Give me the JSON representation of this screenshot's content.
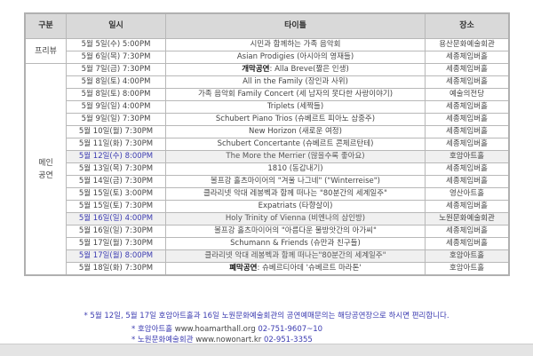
{
  "headers": {
    "category": "구분",
    "datetime": "일시",
    "title": "타이틀",
    "venue": "장소"
  },
  "categories": {
    "preview": "프리뷰",
    "main": "메인\n공연"
  },
  "rows": [
    {
      "date": "5월 5일(수) 5:00PM",
      "title": "시민과 함께하는 가족 음악회",
      "venue": "용산문화예술회관"
    },
    {
      "date": "5월 6일(목) 7:30PM",
      "title": "Asian Prodigies (아시아의 영재들)",
      "venue": "세종체임버홀"
    },
    {
      "date": "5월 7일(금) 7:30PM",
      "title_prefix": "개막공연",
      "title": ": Alla Breve(짧은 인생)",
      "venue": "세종체임버홀"
    },
    {
      "date": "5월 8일(토) 4:00PM",
      "title": "All in the Family (장인과 사위)",
      "venue": "세종체임버홀"
    },
    {
      "date": "5월 8일(토) 8:00PM",
      "title": "가족 음악회 Family Concert (세 남자의 못다한 사랑이야기)",
      "venue": "예술의전당"
    },
    {
      "date": "5월 9일(일) 4:00PM",
      "title": "Triplets (세짝들)",
      "venue": "세종체임버홀"
    },
    {
      "date": "5월 9일(일) 7:30PM",
      "title": "Schubert Piano Trios (슈베르트 피아노 삼중주)",
      "venue": "세종체임버홀"
    },
    {
      "date": "5월 10일(월) 7:30PM",
      "title": "New Horizon (새로운 여정)",
      "venue": "세종체임버홀"
    },
    {
      "date": "5월 11일(화) 7:30PM",
      "title": "Schubert Concertante (슈베르트 콘체르탄테)",
      "venue": "세종체임버홀"
    },
    {
      "date": "5월 12일(수) 8:00PM",
      "title": "The More the Merrier (많을수록 좋아요)",
      "venue": "호암아트홀",
      "highlight": true
    },
    {
      "date": "5월 13일(목) 7:30PM",
      "title": "1810 (동갑내기)",
      "venue": "세종체임버홀"
    },
    {
      "date": "5월 14일(금) 7:30PM",
      "title": "볼프강 홀츠마이어의 \"겨울 나그네\" (\"Winterreise\")",
      "venue": "세종체임버홀"
    },
    {
      "date": "5월 15일(토) 3:00PM",
      "title": "클라리넷 악대 레봉벡과 함께 떠나는 \"80분간의 세계일주\"",
      "venue": "영산아트홀"
    },
    {
      "date": "5월 15일(토) 7:30PM",
      "title": "Expatriats (타향살이)",
      "venue": "세종체임버홀"
    },
    {
      "date": "5월 16일(일) 4:00PM",
      "title": "Holy Trinity of Vienna (비엔나의 삼인방)",
      "venue": "노원문화예술회관",
      "highlight": true
    },
    {
      "date": "5월 16일(일) 7:30PM",
      "title": "볼프강 홀츠마이어의 \"아름다운 물방앗간의 아가씨\"",
      "venue": "세종체임버홀"
    },
    {
      "date": "5월 17일(월) 7:30PM",
      "title": "Schumann & Friends (슈만과 친구들)",
      "venue": "세종체임버홀"
    },
    {
      "date": "5월 17일(월) 8:00PM",
      "title": "클라리넷 악대 레봉벡과 함께 떠나는\"80분간의 세계일주\"",
      "venue": "호암아트홀",
      "highlight": true
    },
    {
      "date": "5월 18일(화) 7:30PM",
      "title_prefix": "폐막공연",
      "title": ": 슈베르티아데 '슈베르트 마라톤'",
      "venue": "호암아트홀"
    }
  ],
  "footnote": "* 5월 12일, 5월 17일 호암아트홀과 16일 노원문화예술회관의 공연예매문의는 해당공연장으로 하시면 편리합니다.",
  "contacts": [
    {
      "prefix": "* 호암아트홀",
      "url": "www.hoamarthall.org",
      "phone": "02-751-9607~10"
    },
    {
      "prefix": "* 노원문화예술회관",
      "url": "www.nowonart.kr",
      "phone": "02-951-3355"
    }
  ],
  "colors": {
    "header_bg": "#d9d9d9",
    "highlight_bg": "#f0f0f0",
    "accent_blue": "#3b3bb0"
  }
}
